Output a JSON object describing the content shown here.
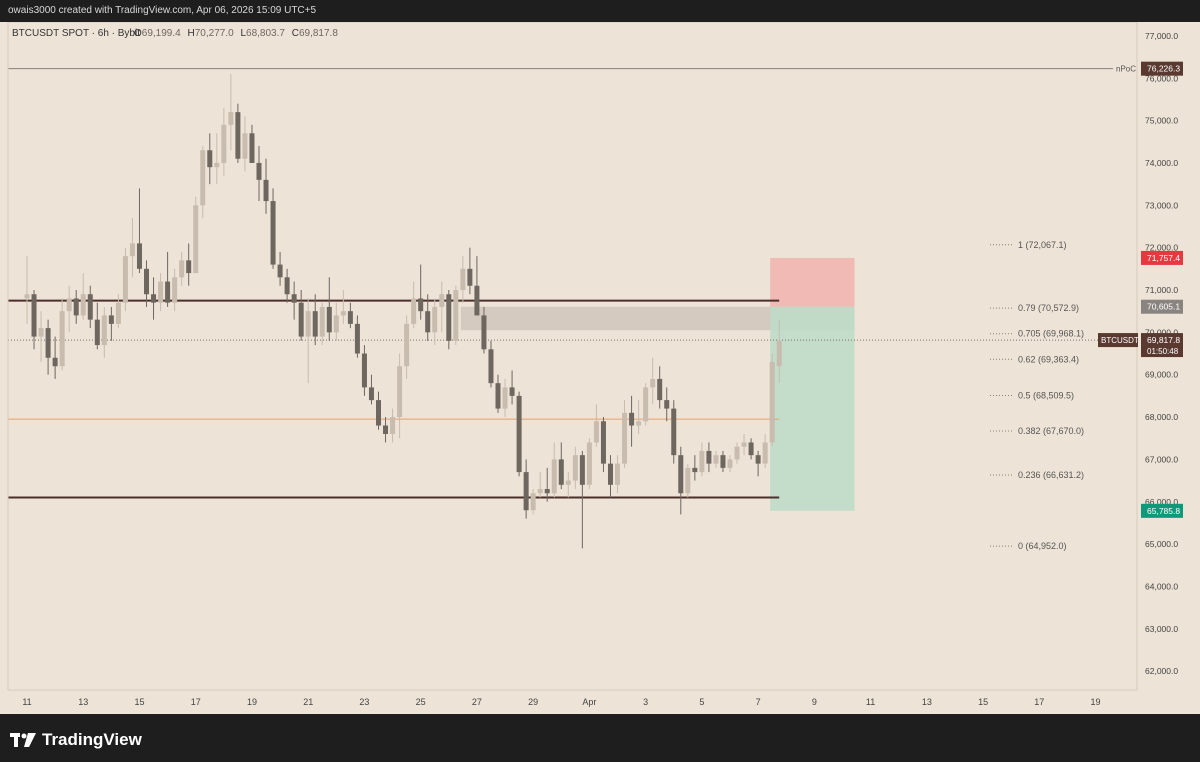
{
  "header": {
    "credit": "owais3000 created with TradingView.com, Apr 06, 2026 15:09 UTC+5"
  },
  "chart": {
    "symbol_line": "BTCUSDT SPOT · 6h · Bybit",
    "ohlc": {
      "o_label": "O",
      "o": "69,199.4",
      "h_label": "H",
      "h": "70,277.0",
      "l_label": "L",
      "l": "68,803.7",
      "c_label": "C",
      "c": "69,817.8"
    }
  },
  "footer": {
    "brand": "TradingView"
  },
  "colors": {
    "bg": "#ede3d6",
    "bull": "#c8bcaf",
    "bear": "#6e6760",
    "line": "#4a2f2a",
    "orange": "#e8a06a",
    "stop": "#f2b5b1",
    "target": "#bfdcc9",
    "red_label": "#e5393f",
    "green_label": "#0e9a7a",
    "gray_label": "#8a8480",
    "price_label": "#5a3a30"
  },
  "chart_data": {
    "type": "candlestick",
    "title": "BTCUSDT SPOT · 6h · Bybit",
    "ylim": [
      61500,
      77500
    ],
    "y_ticks": [
      "62,000.0",
      "63,000.0",
      "64,000.0",
      "65,000.0",
      "66,000.0",
      "67,000.0",
      "68,000.0",
      "69,000.0",
      "70,000.0",
      "71,000.0",
      "72,000.0",
      "73,000.0",
      "74,000.0",
      "75,000.0",
      "76,000.0",
      "77,000.0"
    ],
    "y_tick_values": [
      62000,
      63000,
      64000,
      65000,
      66000,
      67000,
      68000,
      69000,
      70000,
      71000,
      72000,
      73000,
      74000,
      75000,
      76000,
      77000
    ],
    "x_ticks": [
      "11",
      "13",
      "15",
      "17",
      "19",
      "21",
      "23",
      "25",
      "27",
      "29",
      "Apr",
      "3",
      "5",
      "7",
      "9",
      "11",
      "13",
      "15",
      "17",
      "19"
    ],
    "x_tick_slots": [
      0,
      8,
      16,
      24,
      32,
      40,
      48,
      56,
      64,
      72,
      80,
      88,
      96,
      104,
      112,
      120,
      128,
      136,
      144,
      152
    ],
    "candles": [
      [
        70800,
        71800,
        70200,
        70900
      ],
      [
        70900,
        71000,
        69600,
        69900
      ],
      [
        69900,
        70500,
        69300,
        70100
      ],
      [
        70100,
        70300,
        69000,
        69400
      ],
      [
        69400,
        69900,
        68900,
        69200
      ],
      [
        69200,
        70800,
        69100,
        70500
      ],
      [
        70500,
        71100,
        70000,
        70800
      ],
      [
        70800,
        71000,
        70200,
        70400
      ],
      [
        70400,
        71400,
        70300,
        70900
      ],
      [
        70900,
        71100,
        70100,
        70300
      ],
      [
        70300,
        70700,
        69600,
        69700
      ],
      [
        69700,
        70600,
        69400,
        70400
      ],
      [
        70400,
        70600,
        69800,
        70200
      ],
      [
        70200,
        70900,
        70100,
        70700
      ],
      [
        70700,
        72000,
        70500,
        71800
      ],
      [
        71800,
        72700,
        71300,
        72100
      ],
      [
        72100,
        73400,
        71400,
        71500
      ],
      [
        71500,
        71700,
        70600,
        70900
      ],
      [
        70900,
        71300,
        70300,
        70700
      ],
      [
        70700,
        71400,
        70500,
        71200
      ],
      [
        71200,
        71900,
        70600,
        70700
      ],
      [
        70700,
        71500,
        70500,
        71300
      ],
      [
        71300,
        71900,
        71100,
        71700
      ],
      [
        71700,
        72100,
        71100,
        71400
      ],
      [
        71400,
        73200,
        71400,
        73000
      ],
      [
        73000,
        74400,
        72700,
        74300
      ],
      [
        74300,
        74700,
        73500,
        73900
      ],
      [
        73900,
        74700,
        73500,
        74000
      ],
      [
        74000,
        75300,
        73700,
        74900
      ],
      [
        74900,
        76100,
        74300,
        75200
      ],
      [
        75200,
        75400,
        74000,
        74100
      ],
      [
        74100,
        75100,
        73800,
        74700
      ],
      [
        74700,
        74900,
        74000,
        74000
      ],
      [
        74000,
        74400,
        73100,
        73600
      ],
      [
        73600,
        74100,
        72800,
        73100
      ],
      [
        73100,
        73400,
        71500,
        71600
      ],
      [
        71600,
        71900,
        71100,
        71300
      ],
      [
        71300,
        71500,
        70700,
        70900
      ],
      [
        70900,
        71200,
        70300,
        70700
      ],
      [
        70700,
        71000,
        69800,
        69900
      ],
      [
        69900,
        70800,
        68800,
        70500
      ],
      [
        70500,
        70900,
        69700,
        69900
      ],
      [
        69900,
        70700,
        69700,
        70600
      ],
      [
        70600,
        71300,
        69800,
        70000
      ],
      [
        70000,
        70700,
        69800,
        70400
      ],
      [
        70400,
        71000,
        70200,
        70500
      ],
      [
        70500,
        70700,
        70100,
        70200
      ],
      [
        70200,
        70400,
        69400,
        69500
      ],
      [
        69500,
        69700,
        68500,
        68700
      ],
      [
        68700,
        69000,
        68300,
        68400
      ],
      [
        68400,
        68600,
        67700,
        67800
      ],
      [
        67800,
        68000,
        67400,
        67600
      ],
      [
        67600,
        68200,
        67400,
        68000
      ],
      [
        68000,
        69500,
        67500,
        69200
      ],
      [
        69200,
        70400,
        68900,
        70200
      ],
      [
        70200,
        71200,
        70100,
        70800
      ],
      [
        70800,
        71600,
        70300,
        70500
      ],
      [
        70500,
        70900,
        69800,
        70000
      ],
      [
        70000,
        70800,
        69700,
        70600
      ],
      [
        70600,
        71200,
        70000,
        70900
      ],
      [
        70900,
        71000,
        69600,
        69800
      ],
      [
        69800,
        71100,
        69700,
        71000
      ],
      [
        71000,
        71800,
        70700,
        71500
      ],
      [
        71500,
        72000,
        70900,
        71100
      ],
      [
        71100,
        71800,
        70400,
        70400
      ],
      [
        70400,
        70600,
        69500,
        69600
      ],
      [
        69600,
        69800,
        68700,
        68800
      ],
      [
        68800,
        69000,
        68100,
        68200
      ],
      [
        68200,
        68900,
        68000,
        68700
      ],
      [
        68700,
        69100,
        68300,
        68500
      ],
      [
        68500,
        68600,
        66600,
        66700
      ],
      [
        66700,
        67000,
        65600,
        65800
      ],
      [
        65800,
        66300,
        65700,
        66200
      ],
      [
        66200,
        66700,
        66100,
        66300
      ],
      [
        66300,
        66800,
        66000,
        66200
      ],
      [
        66200,
        67400,
        66100,
        67000
      ],
      [
        67000,
        67400,
        66300,
        66400
      ],
      [
        66400,
        66700,
        66100,
        66500
      ],
      [
        66500,
        67300,
        66300,
        67100
      ],
      [
        67100,
        67200,
        64900,
        66400
      ],
      [
        66400,
        67500,
        66300,
        67400
      ],
      [
        67400,
        68300,
        67300,
        67900
      ],
      [
        67900,
        68000,
        66700,
        66900
      ],
      [
        66900,
        67100,
        66100,
        66400
      ],
      [
        66400,
        67100,
        66200,
        66900
      ],
      [
        66900,
        68400,
        66800,
        68100
      ],
      [
        68100,
        68500,
        67300,
        67800
      ],
      [
        67800,
        68400,
        67600,
        67900
      ],
      [
        67900,
        68800,
        67800,
        68700
      ],
      [
        68700,
        69400,
        68300,
        68900
      ],
      [
        68900,
        69200,
        68200,
        68400
      ],
      [
        68400,
        68700,
        67900,
        68200
      ],
      [
        68200,
        68400,
        66900,
        67100
      ],
      [
        67100,
        67300,
        65700,
        66200
      ],
      [
        66200,
        66900,
        66100,
        66800
      ],
      [
        66800,
        67100,
        66500,
        66700
      ],
      [
        66700,
        67400,
        66600,
        67200
      ],
      [
        67200,
        67400,
        66700,
        66900
      ],
      [
        66900,
        67200,
        66800,
        67100
      ],
      [
        67100,
        67200,
        66700,
        66800
      ],
      [
        66800,
        67100,
        66700,
        67000
      ],
      [
        67000,
        67400,
        66900,
        67300
      ],
      [
        67300,
        67600,
        67100,
        67400
      ],
      [
        67400,
        67500,
        67000,
        67100
      ],
      [
        67100,
        67200,
        66600,
        66900
      ],
      [
        66900,
        67600,
        66800,
        67400
      ],
      [
        67400,
        69500,
        67300,
        69300
      ],
      [
        69200,
        70300,
        68800,
        69800
      ]
    ],
    "horizontal_lines": [
      {
        "price": 70750,
        "color": "line",
        "x_from": 0,
        "x_to": 107
      },
      {
        "price": 66100,
        "color": "line",
        "x_from": 0,
        "x_to": 107
      },
      {
        "price": 67950,
        "color": "orange",
        "x_from": 0,
        "x_to": 107
      },
      {
        "price": 76226.3,
        "color": "npoc",
        "x_from": 0,
        "x_to": 157
      }
    ],
    "zones": [
      {
        "kind": "supply",
        "x_from": 62,
        "x_to": 118,
        "y_top": 70605.1,
        "y_bottom": 70050
      },
      {
        "kind": "stop",
        "x_from": 106,
        "x_to": 118,
        "y_top": 71757.4,
        "y_bottom": 70605.1
      },
      {
        "kind": "target",
        "x_from": 106,
        "x_to": 118,
        "y_top": 70605.1,
        "y_bottom": 65785.8
      }
    ],
    "last_price_line": 69817.8,
    "npoc_label": "nPoC",
    "fib": [
      {
        "label": "1 (72,067.1)",
        "price": 72067.1
      },
      {
        "label": "0.79 (70,572.9)",
        "price": 70572.9
      },
      {
        "label": "0.705 (69,968.1)",
        "price": 69968.1
      },
      {
        "label": "0.62 (69,363.4)",
        "price": 69363.4
      },
      {
        "label": "0.5 (68,509.5)",
        "price": 68509.5
      },
      {
        "label": "0.382 (67,670.0)",
        "price": 67670.0
      },
      {
        "label": "0.236 (66,631.2)",
        "price": 66631.2
      },
      {
        "label": "0 (64,952.0)",
        "price": 64952.0
      }
    ],
    "price_labels": [
      {
        "text": "76,226.3",
        "price": 76226.3,
        "color": "price_label"
      },
      {
        "text": "71,757.4",
        "price": 71757.4,
        "color": "red_label"
      },
      {
        "text": "70,605.1",
        "price": 70605.1,
        "color": "gray_label"
      },
      {
        "text": "69,817.8",
        "sub": "01:50:48",
        "price": 69817.8,
        "color": "price_label",
        "tag": "BTCUSDT"
      },
      {
        "text": "65,785.8",
        "price": 65785.8,
        "color": "green_label"
      }
    ]
  }
}
